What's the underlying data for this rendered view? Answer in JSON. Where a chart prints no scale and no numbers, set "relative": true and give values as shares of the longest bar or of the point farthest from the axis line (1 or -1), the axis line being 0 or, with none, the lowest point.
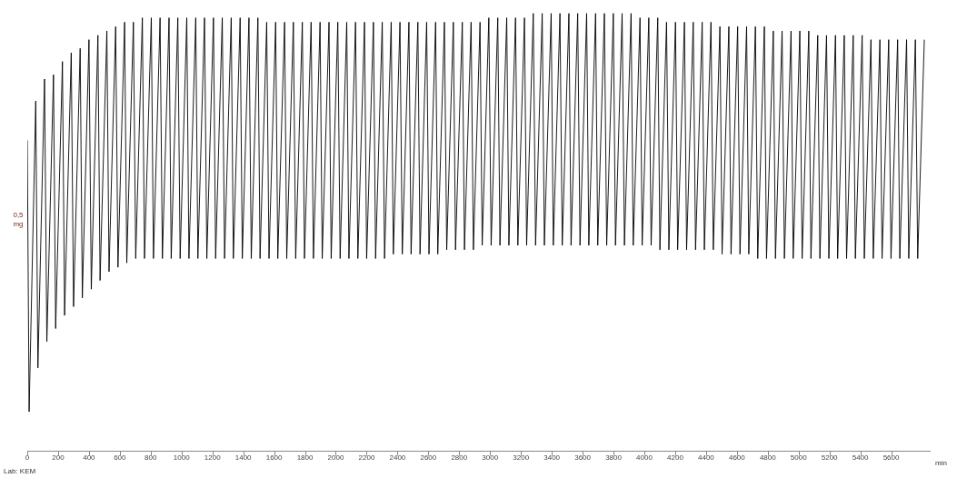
{
  "chart_data": {
    "type": "line",
    "relative": true,
    "ylabel": "0,5 mg",
    "xlabel": "min",
    "annotations": [
      "Lab: KEM"
    ],
    "xlim": [
      0,
      5850
    ],
    "xticks": [
      0,
      200,
      400,
      600,
      800,
      1000,
      1200,
      1400,
      1600,
      1800,
      2000,
      2200,
      2400,
      2600,
      2800,
      3000,
      3200,
      3400,
      3600,
      3800,
      4000,
      4200,
      4400,
      4600,
      4800,
      5000,
      5200,
      5400,
      5600
    ],
    "grid": false,
    "legend": false,
    "marker": "none",
    "line_style": "solid",
    "series": [
      {
        "color": "#000000",
        "x": [
          0,
          12,
          55,
          69,
          112,
          127,
          170,
          184,
          228,
          242,
          285,
          300,
          343,
          357,
          400,
          415,
          458,
          472,
          516,
          530,
          573,
          588,
          631,
          645,
          688,
          703,
          746,
          760,
          804,
          818,
          861,
          876,
          919,
          933,
          976,
          991,
          1034,
          1048,
          1092,
          1106,
          1149,
          1164,
          1207,
          1221,
          1264,
          1279,
          1322,
          1336,
          1380,
          1394,
          1437,
          1452,
          1495,
          1509,
          1552,
          1567,
          1610,
          1624,
          1668,
          1682,
          1725,
          1740,
          1783,
          1797,
          1840,
          1855,
          1898,
          1912,
          1956,
          1970,
          2013,
          2028,
          2071,
          2085,
          2128,
          2143,
          2186,
          2200,
          2244,
          2258,
          2301,
          2316,
          2359,
          2373,
          2416,
          2431,
          2474,
          2488,
          2532,
          2546,
          2589,
          2604,
          2647,
          2661,
          2704,
          2719,
          2762,
          2776,
          2820,
          2834,
          2877,
          2892,
          2935,
          2949,
          2992,
          3007,
          3050,
          3064,
          3108,
          3122,
          3165,
          3180,
          3223,
          3237,
          3280,
          3295,
          3338,
          3352,
          3396,
          3410,
          3453,
          3468,
          3511,
          3525,
          3568,
          3583,
          3626,
          3640,
          3684,
          3698,
          3741,
          3756,
          3799,
          3813,
          3856,
          3871,
          3914,
          3928,
          3972,
          3986,
          4029,
          4044,
          4087,
          4101,
          4144,
          4159,
          4202,
          4216,
          4260,
          4274,
          4317,
          4332,
          4375,
          4389,
          4432,
          4447,
          4490,
          4504,
          4548,
          4562,
          4605,
          4620,
          4663,
          4677,
          4720,
          4735,
          4778,
          4792,
          4836,
          4850,
          4893,
          4908,
          4951,
          4965,
          5008,
          5023,
          5066,
          5080,
          5124,
          5138,
          5181,
          5196,
          5239,
          5253,
          5296,
          5311,
          5354,
          5368,
          5412,
          5426,
          5469,
          5484,
          5527,
          5541,
          5584,
          5599,
          5642,
          5656,
          5700,
          5714,
          5757,
          5772,
          5815
        ],
        "values": [
          0.71,
          0.09,
          0.8,
          0.19,
          0.85,
          0.25,
          0.86,
          0.28,
          0.89,
          0.31,
          0.91,
          0.33,
          0.92,
          0.35,
          0.94,
          0.37,
          0.95,
          0.39,
          0.96,
          0.41,
          0.97,
          0.42,
          0.98,
          0.43,
          0.98,
          0.44,
          0.99,
          0.44,
          0.99,
          0.44,
          0.99,
          0.44,
          0.99,
          0.44,
          0.99,
          0.44,
          0.99,
          0.44,
          0.99,
          0.44,
          0.99,
          0.44,
          0.99,
          0.44,
          0.99,
          0.44,
          0.99,
          0.44,
          0.99,
          0.44,
          0.99,
          0.44,
          0.99,
          0.44,
          0.98,
          0.44,
          0.98,
          0.44,
          0.98,
          0.44,
          0.98,
          0.44,
          0.98,
          0.44,
          0.98,
          0.44,
          0.98,
          0.44,
          0.98,
          0.44,
          0.98,
          0.44,
          0.98,
          0.44,
          0.98,
          0.44,
          0.98,
          0.44,
          0.98,
          0.44,
          0.98,
          0.44,
          0.98,
          0.45,
          0.98,
          0.45,
          0.98,
          0.45,
          0.98,
          0.45,
          0.98,
          0.45,
          0.98,
          0.45,
          0.98,
          0.46,
          0.98,
          0.46,
          0.98,
          0.46,
          0.98,
          0.46,
          0.98,
          0.47,
          0.99,
          0.47,
          0.99,
          0.47,
          0.99,
          0.47,
          0.99,
          0.47,
          0.99,
          0.47,
          1.0,
          0.47,
          1.0,
          0.47,
          1.0,
          0.47,
          1.0,
          0.47,
          1.0,
          0.47,
          1.0,
          0.47,
          1.0,
          0.47,
          1.0,
          0.47,
          1.0,
          0.47,
          1.0,
          0.47,
          1.0,
          0.47,
          1.0,
          0.47,
          0.99,
          0.47,
          0.99,
          0.47,
          0.99,
          0.46,
          0.98,
          0.46,
          0.98,
          0.46,
          0.98,
          0.46,
          0.98,
          0.46,
          0.98,
          0.46,
          0.98,
          0.46,
          0.97,
          0.45,
          0.97,
          0.45,
          0.97,
          0.45,
          0.97,
          0.45,
          0.97,
          0.44,
          0.97,
          0.44,
          0.96,
          0.44,
          0.96,
          0.44,
          0.96,
          0.44,
          0.96,
          0.44,
          0.96,
          0.44,
          0.95,
          0.44,
          0.95,
          0.44,
          0.95,
          0.44,
          0.95,
          0.44,
          0.95,
          0.44,
          0.95,
          0.44,
          0.94,
          0.44,
          0.94,
          0.44,
          0.94,
          0.44,
          0.94,
          0.44,
          0.94,
          0.44,
          0.94,
          0.44,
          0.94
        ]
      }
    ]
  }
}
